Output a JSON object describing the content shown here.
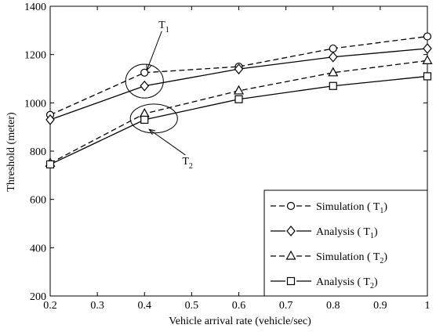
{
  "chart_data": {
    "type": "line",
    "title": "",
    "xlabel": "Vehicle arrival rate (vehicle/sec)",
    "ylabel": "Threshold (meter)",
    "xlim": [
      0.2,
      1.0
    ],
    "ylim": [
      200,
      1400
    ],
    "xticks": [
      0.2,
      0.3,
      0.4,
      0.5,
      0.6,
      0.7,
      0.8,
      0.9,
      1.0
    ],
    "xtick_labels": [
      "0.2",
      "0.3",
      "0.4",
      "0.5",
      "0.6",
      "0.7",
      "0.8",
      "0.9",
      "1"
    ],
    "yticks": [
      200,
      400,
      600,
      800,
      1000,
      1200,
      1400
    ],
    "ytick_labels": [
      "200",
      "400",
      "600",
      "800",
      "1000",
      "1200",
      "1400"
    ],
    "grid": false,
    "legend_position": "bottom-right",
    "series": [
      {
        "name": "Simulation ( T1)",
        "legend_main": "Simulation ( T",
        "legend_sub": "1",
        "legend_close": ")",
        "marker": "circle",
        "dash": true,
        "x": [
          0.2,
          0.4,
          0.6,
          0.8,
          1.0
        ],
        "y": [
          950,
          1125,
          1150,
          1225,
          1275
        ]
      },
      {
        "name": "Analysis ( T1)",
        "legend_main": "Analysis ( T",
        "legend_sub": "1",
        "legend_close": ")",
        "marker": "diamond",
        "dash": false,
        "x": [
          0.2,
          0.4,
          0.6,
          0.8,
          1.0
        ],
        "y": [
          930,
          1070,
          1140,
          1190,
          1225
        ]
      },
      {
        "name": "Simulation ( T2)",
        "legend_main": "Simulation ( T",
        "legend_sub": "2",
        "legend_close": ")",
        "marker": "triangle",
        "dash": true,
        "x": [
          0.2,
          0.4,
          0.6,
          0.8,
          1.0
        ],
        "y": [
          750,
          955,
          1050,
          1125,
          1175
        ]
      },
      {
        "name": "Analysis ( T2)",
        "legend_main": "Analysis ( T",
        "legend_sub": "2",
        "legend_close": ")",
        "marker": "square",
        "dash": false,
        "x": [
          0.2,
          0.4,
          0.6,
          0.8,
          1.0
        ],
        "y": [
          745,
          930,
          1015,
          1070,
          1110
        ]
      }
    ],
    "annotations": [
      {
        "label_main": "T",
        "label_sub": "1",
        "ellipse_center": [
          0.4,
          1090
        ],
        "ellipse_rx": 0.04,
        "ellipse_ry": 70,
        "arrow_tip": [
          0.405,
          1135
        ],
        "label_at": [
          0.43,
          1310
        ]
      },
      {
        "label_main": "T",
        "label_sub": "2",
        "ellipse_center": [
          0.42,
          935
        ],
        "ellipse_rx": 0.05,
        "ellipse_ry": 60,
        "arrow_tip": [
          0.41,
          890
        ],
        "label_at": [
          0.48,
          745
        ]
      }
    ]
  }
}
